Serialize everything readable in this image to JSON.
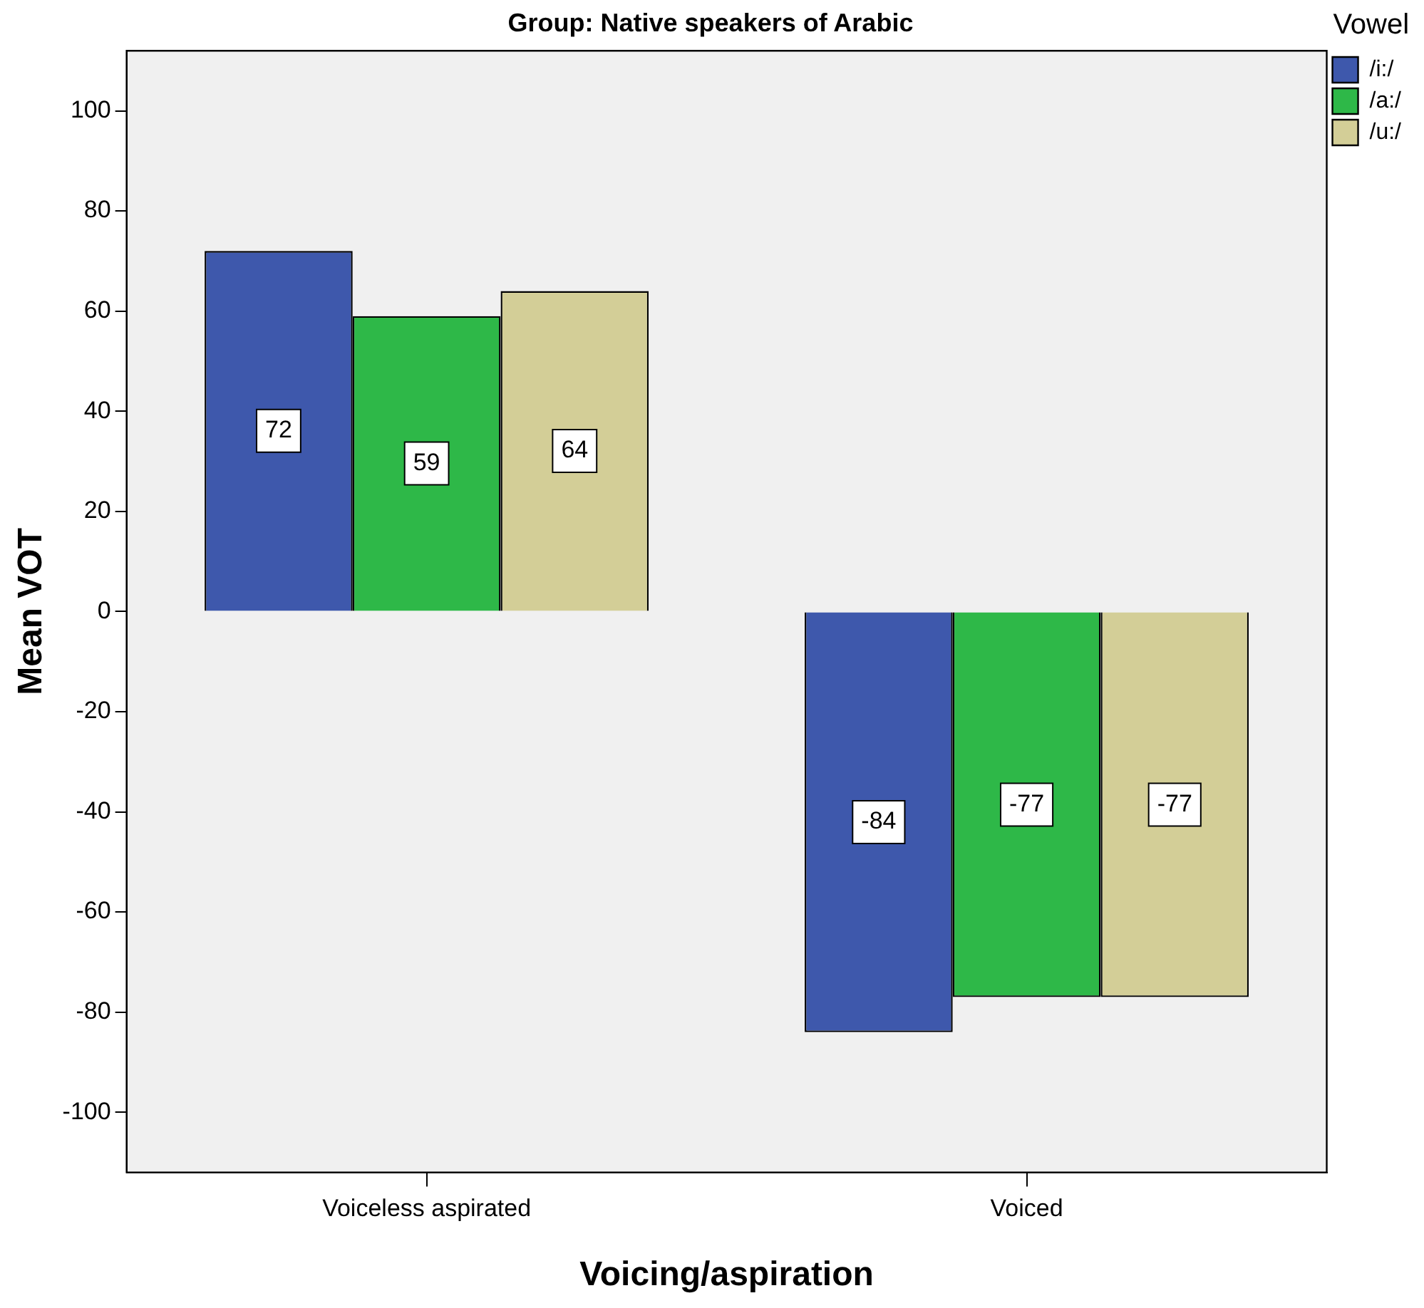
{
  "chart_data": {
    "type": "bar",
    "title": "Group: Native speakers of Arabic",
    "xlabel": "Voicing/aspiration",
    "ylabel": "Mean VOT",
    "legend_title": "Vowel",
    "categories": [
      "Voiceless aspirated",
      "Voiced"
    ],
    "series": [
      {
        "name": "/i:/",
        "color": "#3e58ac",
        "values": [
          72,
          -84
        ]
      },
      {
        "name": "/a:/",
        "color": "#2eb848",
        "values": [
          59,
          -77
        ]
      },
      {
        "name": "/u:/",
        "color": "#d3ce97",
        "values": [
          64,
          -77
        ]
      }
    ],
    "ylim": [
      -112,
      112
    ],
    "yticks": [
      -100,
      -80,
      -60,
      -40,
      -20,
      0,
      20,
      40,
      60,
      80,
      100
    ],
    "grid": false,
    "legend": "top right",
    "data_labels": true
  }
}
